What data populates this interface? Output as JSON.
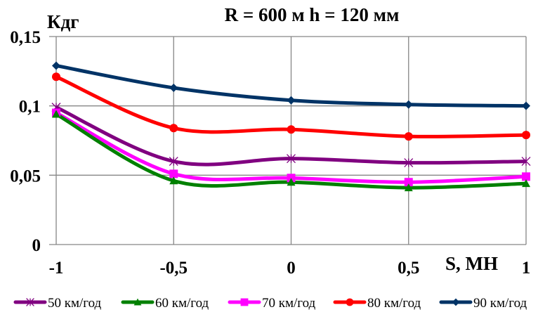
{
  "chart_data": {
    "type": "line",
    "title": "R = 600 м  h = 120 мм",
    "xlabel": "S, МН",
    "ylabel": "Кдг",
    "x": [
      -1,
      -0.5,
      0,
      0.5,
      1
    ],
    "x_tick_labels": [
      "-1",
      "-0,5",
      "0",
      "0,5",
      "1"
    ],
    "xlim": [
      -1,
      1
    ],
    "y_ticks": [
      0,
      0.05,
      0.1,
      0.15
    ],
    "y_tick_labels": [
      "0",
      "0,05",
      "0,1",
      "0,15"
    ],
    "ylim": [
      0,
      0.15
    ],
    "grid": true,
    "smooth": true,
    "legend_position": "bottom",
    "series": [
      {
        "name": "50 км/год",
        "color": "#800080",
        "marker": "star",
        "values": [
          0.099,
          0.06,
          0.062,
          0.059,
          0.06
        ]
      },
      {
        "name": "60 км/год",
        "color": "#008000",
        "marker": "triangle",
        "values": [
          0.094,
          0.046,
          0.045,
          0.041,
          0.044
        ]
      },
      {
        "name": "70 км/год",
        "color": "#FF00FF",
        "marker": "square",
        "values": [
          0.095,
          0.051,
          0.048,
          0.045,
          0.049
        ]
      },
      {
        "name": "80 км/год",
        "color": "#FF0000",
        "marker": "circle",
        "values": [
          0.121,
          0.084,
          0.083,
          0.078,
          0.079
        ]
      },
      {
        "name": "90 км/год",
        "color": "#003366",
        "marker": "diamond",
        "values": [
          0.129,
          0.113,
          0.104,
          0.101,
          0.1
        ]
      }
    ]
  }
}
